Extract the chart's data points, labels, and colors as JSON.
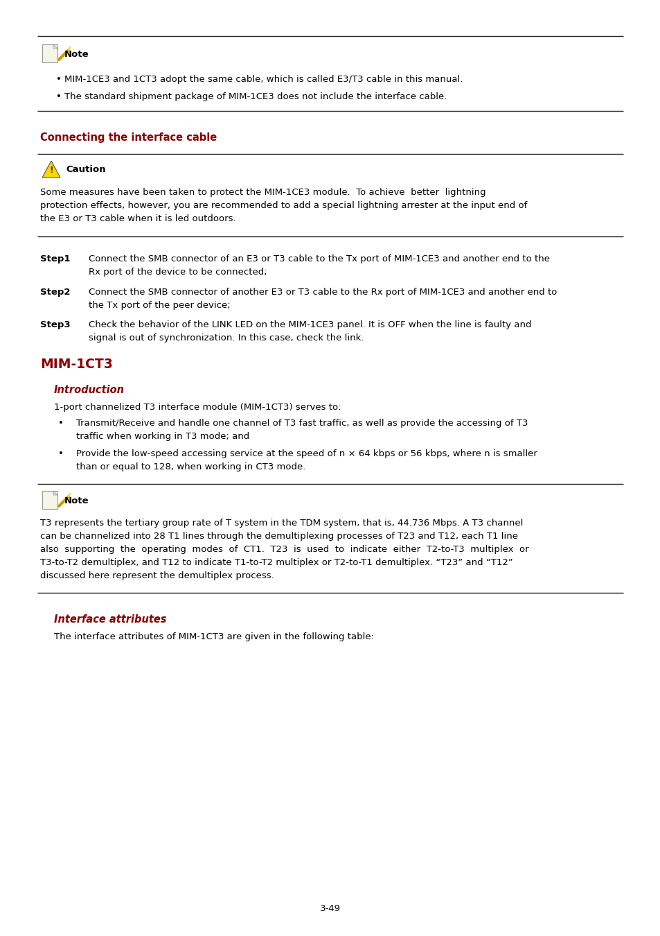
{
  "bg_color": "#ffffff",
  "text_color": "#000000",
  "red_color": "#8B0000",
  "page_number": "3-49",
  "bullet1": "MIM-1CE3 and 1CT3 adopt the same cable, which is called E3/T3 cable in this manual.",
  "bullet2": "The standard shipment package of MIM-1CE3 does not include the interface cable.",
  "section_header": "Connecting the interface cable",
  "caution_text_line1": "Some measures have been taken to protect the MIM-1CE3 module.  To achieve  better  lightning",
  "caution_text_line2": "protection effects, however, you are recommended to add a special lightning arrester at the input end of",
  "caution_text_line3": "the E3 or T3 cable when it is led outdoors.",
  "step1_label": "Step1",
  "step1_text_line1": "Connect the SMB connector of an E3 or T3 cable to the Tx port of MIM-1CE3 and another end to the",
  "step1_text_line2": "Rx port of the device to be connected;",
  "step2_label": "Step2",
  "step2_text_line1": "Connect the SMB connector of another E3 or T3 cable to the Rx port of MIM-1CE3 and another end to",
  "step2_text_line2": "the Tx port of the peer device;",
  "step3_label": "Step3",
  "step3_text_line1": "Check the behavior of the LINK LED on the MIM-1CE3 panel. It is OFF when the line is faulty and",
  "step3_text_line2": "signal is out of synchronization. In this case, check the link.",
  "major_header": "MIM-1CT3",
  "intro_header": "Introduction",
  "intro_para": "1-port channelized T3 interface module (MIM-1CT3) serves to:",
  "intro_bullet1_line1": "Transmit/Receive and handle one channel of T3 fast traffic, as well as provide the accessing of T3",
  "intro_bullet1_line2": "traffic when working in T3 mode; and",
  "intro_bullet2_line1": "Provide the low-speed accessing service at the speed of n × 64 kbps or 56 kbps, where n is smaller",
  "intro_bullet2_line2": "than or equal to 128, when working in CT3 mode.",
  "note2_line1": "T3 represents the tertiary group rate of T system in the TDM system, that is, 44.736 Mbps. A T3 channel",
  "note2_line2": "can be channelized into 28 T1 lines through the demultiplexing processes of T23 and T12, each T1 line",
  "note2_line3": "also  supporting  the  operating  modes  of  CT1.  T23  is  used  to  indicate  either  T2-to-T3  multiplex  or",
  "note2_line4": "T3-to-T2 demultiplex, and T12 to indicate T1-to-T2 multiplex or T2-to-T1 demultiplex. “T23” and “T12”",
  "note2_line5": "discussed here represent the demultiplex process.",
  "iface_header": "Interface attributes",
  "iface_para": "The interface attributes of MIM-1CT3 are given in the following table:"
}
